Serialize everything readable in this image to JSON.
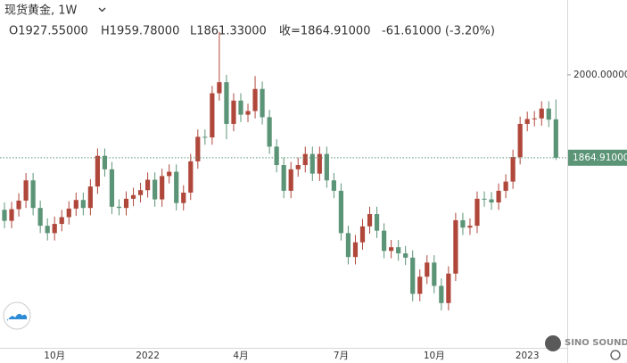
{
  "chart_data": {
    "type": "candlestick",
    "title": "现货黄金, 1W",
    "legend": [
      "O1927.55000",
      "H1959.78000",
      "L1861.33000",
      "收=1864.91000",
      "-61.61000 (-3.20%)"
    ],
    "watermark": "SINO SOUND",
    "up_color": "#b0473b",
    "down_color": "#5b9477",
    "ylim": [
      1555,
      2122
    ],
    "yticks": [
      {
        "value": 2000,
        "label": "2000.00000"
      }
    ],
    "last_price": {
      "value": 1864.91,
      "label": "1864.91000"
    },
    "categories": [
      null,
      null,
      null,
      null,
      null,
      null,
      null,
      "10月",
      null,
      null,
      null,
      null,
      null,
      null,
      null,
      null,
      null,
      null,
      null,
      null,
      "2022",
      null,
      null,
      null,
      null,
      null,
      null,
      null,
      null,
      null,
      null,
      null,
      null,
      "4月",
      null,
      null,
      null,
      null,
      null,
      null,
      null,
      null,
      null,
      null,
      null,
      null,
      null,
      "7月",
      null,
      null,
      null,
      null,
      null,
      null,
      null,
      null,
      null,
      null,
      null,
      null,
      "10月",
      null,
      null,
      null,
      null,
      null,
      null,
      null,
      null,
      null,
      null,
      null,
      null,
      "2023",
      null,
      null,
      null,
      null
    ],
    "open": [
      1780,
      1762,
      1781,
      1795,
      1828,
      1783,
      1754,
      1742,
      1757,
      1768,
      1782,
      1796,
      1783,
      1818,
      1868,
      1846,
      1785,
      1783,
      1798,
      1804,
      1812,
      1829,
      1797,
      1835,
      1842,
      1791,
      1808,
      1859,
      1899,
      1898,
      1970,
      1988,
      1920,
      1958,
      1935,
      1941,
      1977,
      1931,
      1883,
      1853,
      1811,
      1846,
      1853,
      1871,
      1839,
      1871,
      1828,
      1811,
      1742,
      1703,
      1727,
      1753,
      1773,
      1746,
      1713,
      1719,
      1709,
      1702,
      1643,
      1671,
      1694,
      1656,
      1628,
      1676,
      1763,
      1751,
      1754,
      1798,
      1797,
      1792,
      1811,
      1826,
      1866,
      1920,
      1928,
      1929,
      1945,
      1927.55
    ],
    "high": [
      1792,
      1793,
      1807,
      1840,
      1840,
      1795,
      1766,
      1769,
      1780,
      1794,
      1808,
      1808,
      1830,
      1880,
      1880,
      1858,
      1797,
      1810,
      1816,
      1824,
      1841,
      1841,
      1847,
      1854,
      1854,
      1820,
      1871,
      1911,
      1911,
      1982,
      2070,
      2000,
      1970,
      1970,
      1953,
      1998,
      1989,
      1943,
      1895,
      1865,
      1858,
      1865,
      1883,
      1883,
      1883,
      1883,
      1840,
      1823,
      1754,
      1739,
      1765,
      1785,
      1785,
      1758,
      1731,
      1731,
      1721,
      1714,
      1683,
      1706,
      1706,
      1668,
      1688,
      1775,
      1775,
      1766,
      1810,
      1810,
      1809,
      1823,
      1838,
      1878,
      1932,
      1940,
      1941,
      1957,
      1957,
      1959.78
    ],
    "low": [
      1750,
      1750,
      1769,
      1783,
      1771,
      1742,
      1730,
      1730,
      1745,
      1756,
      1770,
      1771,
      1771,
      1806,
      1834,
      1773,
      1771,
      1771,
      1786,
      1792,
      1800,
      1785,
      1785,
      1823,
      1779,
      1779,
      1796,
      1847,
      1886,
      1886,
      1958,
      1895,
      1908,
      1923,
      1923,
      1929,
      1919,
      1871,
      1841,
      1799,
      1799,
      1834,
      1841,
      1827,
      1827,
      1816,
      1799,
      1730,
      1691,
      1691,
      1715,
      1741,
      1734,
      1701,
      1701,
      1697,
      1690,
      1631,
      1631,
      1659,
      1644,
      1616,
      1616,
      1664,
      1739,
      1739,
      1742,
      1785,
      1780,
      1780,
      1799,
      1814,
      1854,
      1908,
      1916,
      1917,
      1915,
      1861.33
    ],
    "close": [
      1762,
      1781,
      1795,
      1828,
      1783,
      1754,
      1742,
      1757,
      1768,
      1782,
      1796,
      1783,
      1818,
      1868,
      1846,
      1785,
      1783,
      1798,
      1804,
      1812,
      1829,
      1797,
      1835,
      1842,
      1791,
      1808,
      1859,
      1899,
      1898,
      1970,
      1988,
      1920,
      1958,
      1935,
      1941,
      1977,
      1931,
      1883,
      1853,
      1811,
      1846,
      1853,
      1871,
      1839,
      1871,
      1828,
      1811,
      1742,
      1703,
      1727,
      1753,
      1773,
      1746,
      1713,
      1719,
      1709,
      1702,
      1643,
      1671,
      1694,
      1656,
      1628,
      1676,
      1763,
      1751,
      1754,
      1798,
      1797,
      1792,
      1811,
      1826,
      1866,
      1920,
      1928,
      1929,
      1945,
      1927,
      1864.91
    ]
  }
}
